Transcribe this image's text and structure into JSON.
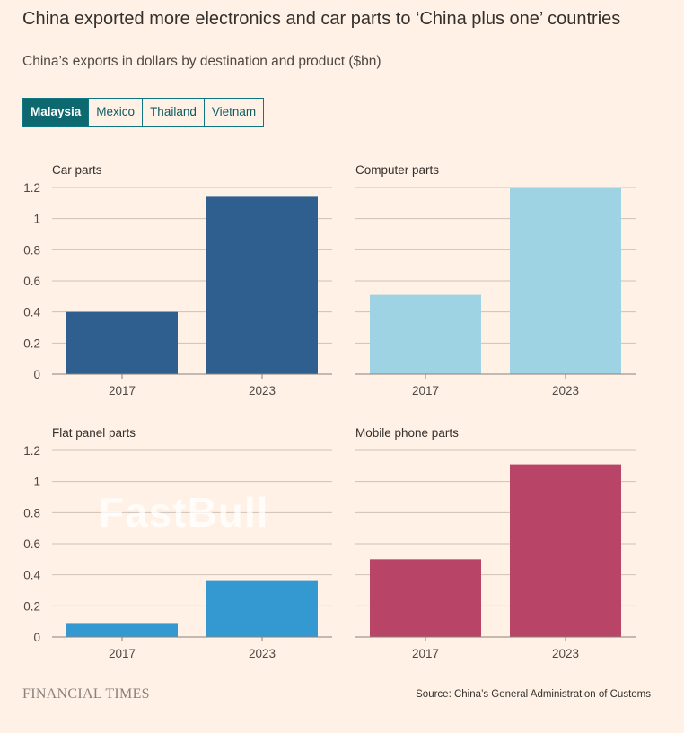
{
  "title": "China exported more electronics and car parts to ‘China plus one’ countries",
  "subtitle": "China’s exports in dollars by destination and product ($bn)",
  "tabs": [
    {
      "label": "Malaysia",
      "active": true
    },
    {
      "label": "Mexico"
    },
    {
      "label": "Thailand"
    },
    {
      "label": "Vietnam"
    }
  ],
  "footer": {
    "brand": "FINANCIAL TIMES",
    "source": "Source: China’s General Administration of Customs",
    "watermark": "FastBull"
  },
  "chart_data": [
    {
      "type": "bar",
      "title": "Car parts",
      "categories": [
        "2017",
        "2023"
      ],
      "values": [
        0.4,
        1.14
      ],
      "ylim": [
        0,
        1.2
      ],
      "yticks": [
        0,
        0.2,
        0.4,
        0.6,
        0.8,
        1,
        1.2
      ],
      "color": "#2f5f8e"
    },
    {
      "type": "bar",
      "title": "Computer parts",
      "categories": [
        "2017",
        "2023"
      ],
      "values": [
        0.51,
        1.2
      ],
      "ylim": [
        0,
        1.2
      ],
      "yticks": [
        0,
        0.2,
        0.4,
        0.6,
        0.8,
        1,
        1.2
      ],
      "color": "#9dd3e2"
    },
    {
      "type": "bar",
      "title": "Flat panel parts",
      "categories": [
        "2017",
        "2023"
      ],
      "values": [
        0.09,
        0.36
      ],
      "ylim": [
        0,
        1.2
      ],
      "yticks": [
        0,
        0.2,
        0.4,
        0.6,
        0.8,
        1,
        1.2
      ],
      "color": "#3499d0"
    },
    {
      "type": "bar",
      "title": "Mobile phone parts",
      "categories": [
        "2017",
        "2023"
      ],
      "values": [
        0.5,
        1.11
      ],
      "ylim": [
        0,
        1.2
      ],
      "yticks": [
        0,
        0.2,
        0.4,
        0.6,
        0.8,
        1,
        1.2
      ],
      "color": "#b84568"
    }
  ]
}
